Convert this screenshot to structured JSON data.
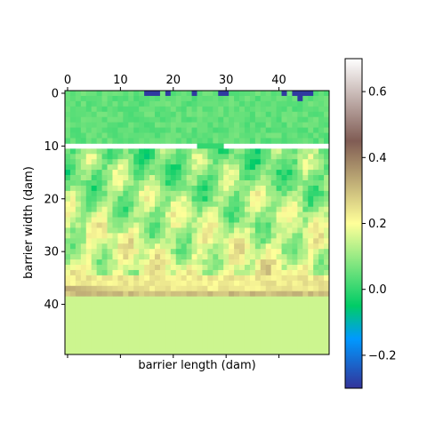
{
  "chart_data": {
    "type": "heatmap",
    "title": "",
    "xlabel": "barrier length (dam)",
    "ylabel": "barrier width (dam)",
    "xlim": [
      0,
      50
    ],
    "ylim": [
      0,
      50
    ],
    "x_ticks": [
      0,
      10,
      20,
      30,
      40
    ],
    "y_ticks": [
      0,
      10,
      20,
      30,
      40
    ],
    "x_tick_position": "top",
    "colorbar": {
      "colormap": "terrain",
      "range": [
        -0.3,
        0.7
      ],
      "ticks": [
        -0.2,
        0.0,
        0.2,
        0.4,
        0.6
      ],
      "tick_labels": [
        "−0.2",
        "0.0",
        "0.2",
        "0.4",
        "0.6"
      ],
      "placement": "right"
    },
    "grid": false,
    "regions": [
      {
        "rows": [
          0,
          9
        ],
        "value": 0.03,
        "description_value_range": [
          0.0,
          0.07
        ]
      },
      {
        "rows": [
          10,
          10
        ],
        "value": null,
        "note": "blank row except columns 25-29 at 0.0"
      },
      {
        "rows": [
          11,
          34
        ],
        "value": 0.12,
        "description_value_range": [
          0.02,
          0.3
        ]
      },
      {
        "rows": [
          35,
          38
        ],
        "value": 0.26,
        "description_value_range": [
          0.2,
          0.4
        ]
      },
      {
        "rows": [
          39,
          49
        ],
        "value": 0.15
      }
    ],
    "negative_cells": [
      {
        "row": 0,
        "cols": [
          15,
          16,
          17,
          19,
          24,
          29,
          30,
          41,
          43,
          44,
          45,
          46
        ]
      },
      {
        "row": 1,
        "cols": [
          44
        ]
      }
    ],
    "row10_segment": {
      "row": 10,
      "cols": [
        25,
        29
      ],
      "value": 0.0
    }
  }
}
